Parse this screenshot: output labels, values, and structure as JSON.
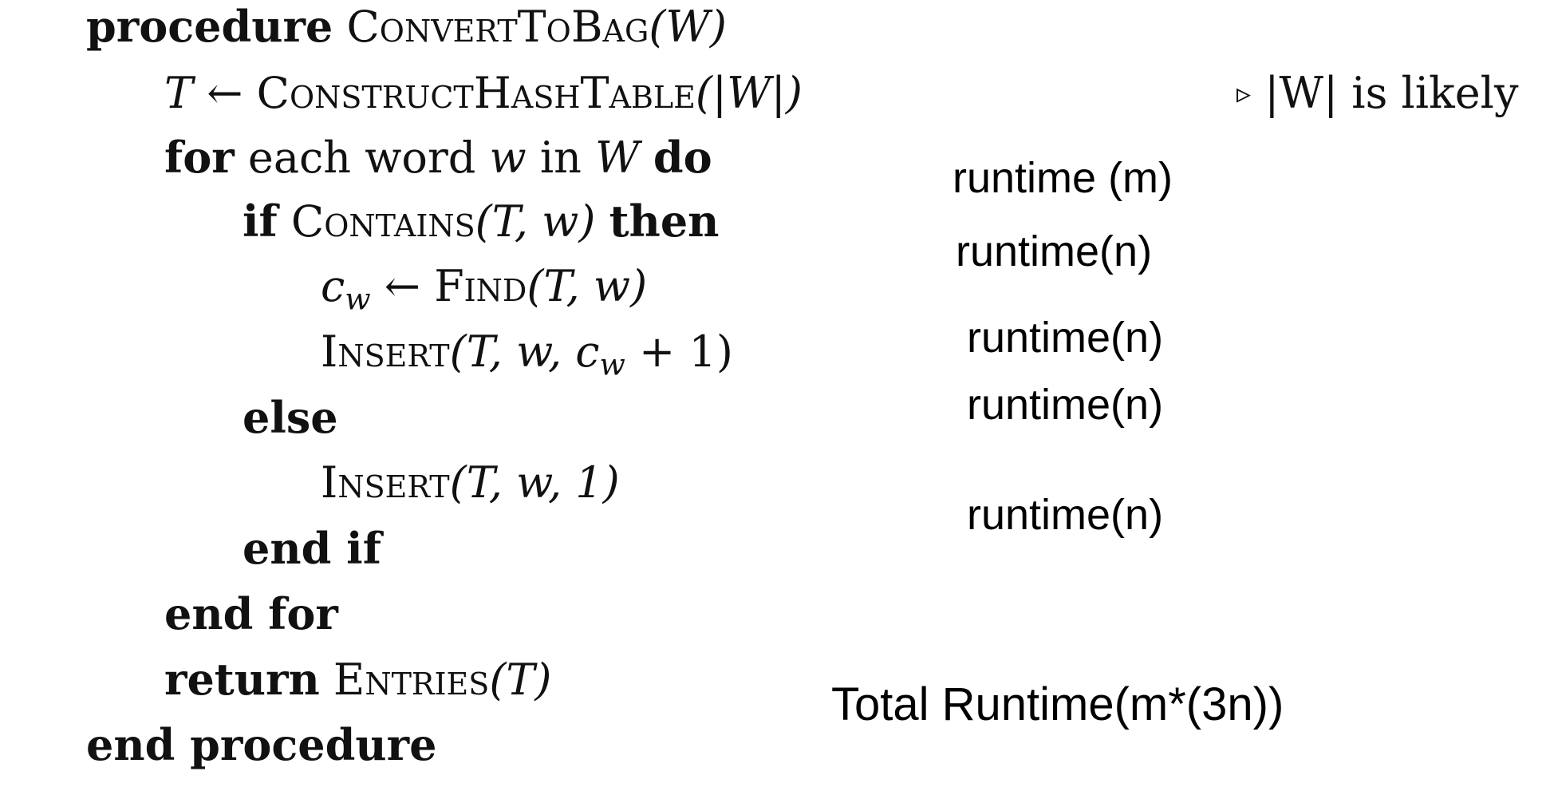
{
  "pseudocode": {
    "l1_kw": "procedure",
    "l1_name": "ConvertToBag",
    "l1_args": "(W)",
    "l2_lhs": "T",
    "l2_arrow": "←",
    "l2_name": "ConstructHashTable",
    "l2_args": "(|W|)",
    "l2_comment_mark": "▹",
    "l2_comment": "|W| is likely",
    "l3_kw1": "for",
    "l3_text": "each word",
    "l3_w": "w",
    "l3_in": "in",
    "l3_W": "W",
    "l3_kw2": "do",
    "l4_kw1": "if",
    "l4_name": "Contains",
    "l4_args": "(T, w)",
    "l4_kw2": "then",
    "l5_lhs": "c",
    "l5_sub": "w",
    "l5_arrow": "←",
    "l5_name": "Find",
    "l5_args": "(T, w)",
    "l6_name": "Insert",
    "l6_args_a": "(T, w, c",
    "l6_sub": "w",
    "l6_args_b": " + 1)",
    "l7_kw": "else",
    "l8_name": "Insert",
    "l8_args": "(T, w, 1)",
    "l9_kw": "end if",
    "l10_kw": "end for",
    "l11_kw": "return",
    "l11_name": "Entries",
    "l11_args": "(T)",
    "l12_kw": "end procedure"
  },
  "annotations": {
    "a1": "runtime (m)",
    "a2": "runtime(n)",
    "a3": "runtime(n)",
    "a4": "runtime(n)",
    "a5": "runtime(n)",
    "total": "Total Runtime(m*(3n))"
  }
}
